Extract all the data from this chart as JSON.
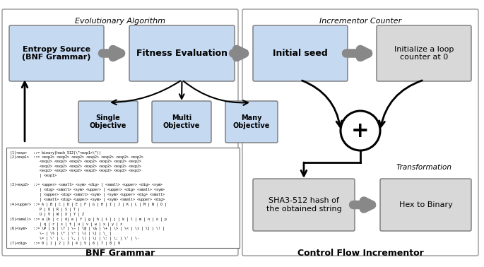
{
  "fig_width": 6.85,
  "fig_height": 3.78,
  "dpi": 100,
  "bg_color": "#ffffff",
  "box_blue": "#c5d9f1",
  "box_gray": "#d8d8d8",
  "title_left": "Evolutionary Algorithm",
  "title_right": "Incrementor Counter",
  "label_left": "BNF Grammar",
  "label_right": "Control Flow Incrementor",
  "bnf_text": "(1)<exp>   ::= binary(hash_512(\\\"<exp1>\\\"))\n(2)<exp1>  ::= <exp2> <exp2> <exp2> <exp2> <exp2> <exp2> <exp2>\n              <exp2> <exp2> <exp2> <exp2> <exp2> <exp2> <exp2>\n              <exp2> <exp2> <exp2> <exp2> <exp2> <exp2> <exp2>\n              <exp2> <exp2> <exp2> <exp2> <exp2> <exp2> <exp2>\n              | <exp1>\n\n(3)<exp2>  ::= <upper> <small> <sym> <dig> | <small> <upper> <dig> <sym>\n              | <dig> <small> <sym> <upper> | <upper> <dig> <small> <sym>\n              | <upper> <dig> <small> <sym> | <sym> <upper> <dig> <small>\n              | <small> <dig> <upper> <sym> | <sym> <small> <upper> <dig>\n(4)<upper> ::= A | B | C | D | E | F | G | H | I | J | K | L | M | N | O |\n              P | Q | R | S | T |\n              U | V | W | X | Y | Z\n(5)<small> ::= a |b | c | d| e | f | g | h | i | j | k | l | m | n | o | p\n              | q | r | s | t | u | v | w | x | y | z\n(6)<sym>   ::= \\# | \\$ | \\? | \\~ | \\@ | \\& | \\+ | \\> | \\< | \\} | \\] | \\! |\n              \\~ | \\% | \\* | \\^ | \\{ | \\[ | \\_ |\n              \\= | \\' | \\. | \\, | \\( | \\) | \\: | \\; | \\' | \\-\n(7)<dig>   ::= 0 | 1 | 2 | 3 | 4 | 5 | 6 | 7 | 8 | 9"
}
